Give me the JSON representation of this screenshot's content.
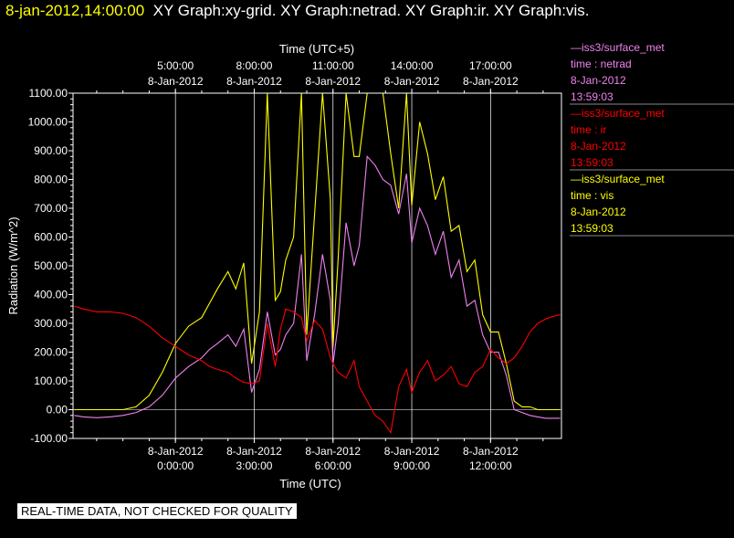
{
  "title": {
    "timestamp": "8-jan-2012,14:00:00",
    "graphs": "XY Graph:xy-grid.  XY Graph:netrad.  XY Graph:ir.  XY Graph:vis."
  },
  "notice": "REAL-TIME DATA, NOT CHECKED FOR QUALITY",
  "colors": {
    "background": "#000000",
    "netrad": "#ee82ee",
    "ir": "#ff0000",
    "vis": "#ffff00",
    "grid": "#ffffff"
  },
  "legend": [
    {
      "line1": "—iss3/surface_met",
      "line2": "time : netrad",
      "line3": "8-Jan-2012",
      "line4": "13:59:03",
      "color": "#ee82ee"
    },
    {
      "line1": "—iss3/surface_met",
      "line2": "time : ir",
      "line3": "8-Jan-2012",
      "line4": "13:59:03",
      "color": "#ff0000"
    },
    {
      "line1": "—iss3/surface_met",
      "line2": "time : vis",
      "line3": "8-Jan-2012",
      "line4": "13:59:03",
      "color": "#ffff00"
    }
  ],
  "chart_data": {
    "type": "line",
    "xlabel": "Time (UTC)",
    "x2label": "Time (UTC+5)",
    "ylabel": "Radiation (W/m^2)",
    "xlim": [
      -3.9,
      14.7
    ],
    "ylim": [
      -100,
      1100
    ],
    "grid": true,
    "legend_position": "right",
    "yticks": [
      -100,
      0,
      100,
      200,
      300,
      400,
      500,
      600,
      700,
      800,
      900,
      1000,
      1100
    ],
    "ytick_labels": [
      "-100.00",
      "0.00",
      "100.00",
      "200.00",
      "300.00",
      "400.00",
      "500.00",
      "600.00",
      "700.00",
      "800.00",
      "900.00",
      "1000.00",
      "1100.00"
    ],
    "xticks": [
      0,
      3,
      6,
      9,
      12
    ],
    "xtick_labels": [
      [
        "8-Jan-2012",
        "0:00:00"
      ],
      [
        "8-Jan-2012",
        "3:00:00"
      ],
      [
        "8-Jan-2012",
        "6:00:00"
      ],
      [
        "8-Jan-2012",
        "9:00:00"
      ],
      [
        "8-Jan-2012",
        "12:00:00"
      ]
    ],
    "x2tick_labels": [
      [
        "5:00:00",
        "8-Jan-2012"
      ],
      [
        "8:00:00",
        "8-Jan-2012"
      ],
      [
        "11:00:00",
        "8-Jan-2012"
      ],
      [
        "14:00:00",
        "8-Jan-2012"
      ],
      [
        "17:00:00",
        "8-Jan-2012"
      ]
    ],
    "x": [
      -3.85,
      -3.5,
      -3.0,
      -2.5,
      -2.0,
      -1.5,
      -1.0,
      -0.5,
      0.0,
      0.5,
      1.0,
      1.3,
      1.6,
      2.0,
      2.3,
      2.6,
      2.9,
      3.2,
      3.5,
      3.8,
      4.0,
      4.2,
      4.5,
      4.8,
      5.0,
      5.3,
      5.6,
      5.9,
      6.0,
      6.2,
      6.5,
      6.8,
      7.0,
      7.3,
      7.6,
      7.9,
      8.2,
      8.5,
      8.8,
      9.0,
      9.3,
      9.6,
      9.9,
      10.2,
      10.5,
      10.8,
      11.1,
      11.4,
      11.7,
      12.0,
      12.3,
      12.6,
      12.9,
      13.2,
      13.5,
      13.8,
      14.1,
      14.4,
      14.65
    ],
    "series": [
      {
        "name": "time : vis",
        "color": "#ffff00",
        "values": [
          0,
          0,
          0,
          0,
          0,
          10,
          50,
          130,
          230,
          290,
          320,
          370,
          420,
          480,
          420,
          510,
          160,
          340,
          1100,
          380,
          410,
          520,
          600,
          1100,
          260,
          680,
          1100,
          730,
          220,
          530,
          1100,
          880,
          880,
          1100,
          1100,
          1100,
          890,
          700,
          1100,
          710,
          1000,
          890,
          730,
          810,
          620,
          640,
          480,
          520,
          330,
          270,
          270,
          160,
          30,
          10,
          10,
          0,
          0,
          0,
          0
        ]
      },
      {
        "name": "time : netrad",
        "color": "#ee82ee",
        "values": [
          -20,
          -25,
          -28,
          -25,
          -20,
          -10,
          10,
          50,
          110,
          150,
          180,
          210,
          230,
          260,
          220,
          280,
          60,
          140,
          340,
          190,
          210,
          260,
          300,
          540,
          170,
          330,
          540,
          380,
          160,
          300,
          650,
          500,
          570,
          880,
          850,
          800,
          780,
          680,
          820,
          580,
          700,
          640,
          540,
          620,
          460,
          520,
          360,
          380,
          260,
          200,
          200,
          120,
          0,
          -10,
          -20,
          -25,
          -30,
          -30,
          -30
        ]
      },
      {
        "name": "time : ir",
        "color": "#ff0000",
        "values": [
          360,
          350,
          340,
          340,
          335,
          320,
          290,
          250,
          220,
          190,
          170,
          150,
          140,
          130,
          110,
          95,
          90,
          100,
          300,
          150,
          280,
          350,
          340,
          320,
          240,
          310,
          280,
          180,
          160,
          130,
          110,
          170,
          80,
          30,
          -20,
          -40,
          -80,
          80,
          140,
          60,
          130,
          170,
          100,
          120,
          150,
          90,
          80,
          130,
          150,
          210,
          180,
          160,
          180,
          220,
          270,
          300,
          315,
          325,
          330
        ]
      }
    ]
  }
}
